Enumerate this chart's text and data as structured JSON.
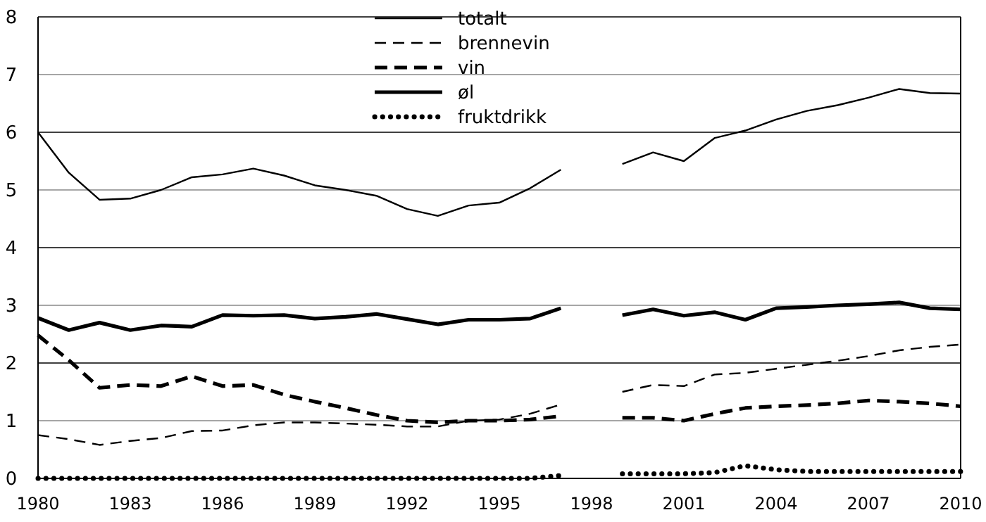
{
  "chart_data": {
    "type": "line",
    "x": [
      1980,
      1981,
      1982,
      1983,
      1984,
      1985,
      1986,
      1987,
      1988,
      1989,
      1990,
      1991,
      1992,
      1993,
      1994,
      1995,
      1996,
      1997,
      1998,
      1999,
      2000,
      2001,
      2002,
      2003,
      2004,
      2005,
      2006,
      2007,
      2008,
      2009,
      2010
    ],
    "series": [
      {
        "name": "totalt",
        "color": "#000000",
        "line_style": "solid",
        "values": [
          6.0,
          5.3,
          4.83,
          4.85,
          5.0,
          5.22,
          5.27,
          5.37,
          5.25,
          5.08,
          5.0,
          4.9,
          4.67,
          4.55,
          4.73,
          4.78,
          5.03,
          5.35,
          null,
          5.45,
          5.65,
          5.5,
          5.9,
          6.03,
          6.22,
          6.37,
          6.47,
          6.6,
          6.75,
          6.68,
          6.67
        ]
      },
      {
        "name": "brennevin",
        "color": "#000000",
        "line_style": "dashed",
        "values": [
          0.75,
          0.68,
          0.58,
          0.65,
          0.7,
          0.82,
          0.83,
          0.92,
          0.97,
          0.97,
          0.95,
          0.93,
          0.9,
          0.9,
          1.0,
          1.02,
          1.12,
          1.28,
          null,
          1.5,
          1.62,
          1.6,
          1.8,
          1.83,
          1.9,
          1.97,
          2.04,
          2.12,
          2.22,
          2.28,
          2.32
        ]
      },
      {
        "name": "vin",
        "color": "#000000",
        "line_style": "dashed",
        "values": [
          2.48,
          2.05,
          1.57,
          1.62,
          1.6,
          1.77,
          1.6,
          1.62,
          1.45,
          1.33,
          1.22,
          1.1,
          1.0,
          0.97,
          1.0,
          1.0,
          1.02,
          1.08,
          null,
          1.05,
          1.05,
          1.0,
          1.12,
          1.22,
          1.25,
          1.27,
          1.3,
          1.35,
          1.33,
          1.3,
          1.25
        ]
      },
      {
        "name": "øl",
        "color": "#000000",
        "line_style": "solid",
        "values": [
          2.78,
          2.57,
          2.7,
          2.57,
          2.65,
          2.63,
          2.83,
          2.82,
          2.83,
          2.77,
          2.8,
          2.85,
          2.76,
          2.67,
          2.75,
          2.75,
          2.77,
          2.95,
          null,
          2.83,
          2.93,
          2.82,
          2.88,
          2.75,
          2.95,
          2.97,
          3.0,
          3.02,
          3.05,
          2.95,
          2.93
        ]
      },
      {
        "name": "fruktdrikk",
        "color": "#000000",
        "line_style": "dotted",
        "values": [
          0,
          0,
          0,
          0,
          0,
          0,
          0,
          0,
          0,
          0,
          0,
          0,
          0,
          0,
          0,
          0,
          0,
          0.05,
          null,
          0.08,
          0.08,
          0.08,
          0.1,
          0.22,
          0.15,
          0.12,
          0.12,
          0.12,
          0.12,
          0.12,
          0.12
        ]
      }
    ],
    "xlim": [
      1980,
      2010
    ],
    "xticks": [
      1980,
      1983,
      1986,
      1989,
      1992,
      1995,
      1998,
      2001,
      2004,
      2007,
      2010
    ],
    "ylim": [
      0,
      8
    ],
    "yticks": [
      0,
      1,
      2,
      3,
      4,
      5,
      6,
      7,
      8
    ],
    "grid": "y",
    "legend": "top",
    "marker": "none"
  }
}
